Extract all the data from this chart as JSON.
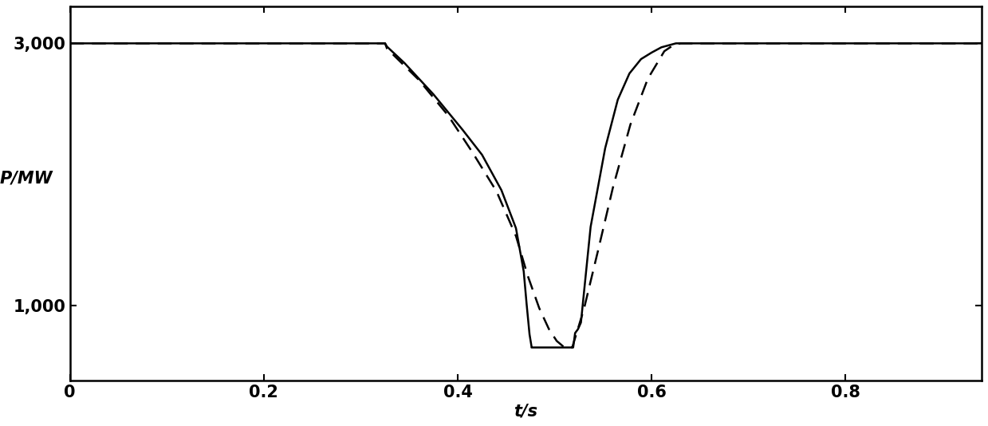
{
  "title": "",
  "xlabel": "t/s",
  "ylabel": "P/MW",
  "xlim": [
    0,
    0.94
  ],
  "ylim": [
    430,
    3280
  ],
  "yticks": [
    1000,
    3000
  ],
  "ytick_labels": [
    "1,000",
    "3,000"
  ],
  "xticks": [
    0,
    0.2,
    0.4,
    0.6,
    0.8
  ],
  "background_color": "#ffffff",
  "line_color": "#000000",
  "solid_x": [
    0.0,
    0.325,
    0.327,
    0.345,
    0.375,
    0.405,
    0.425,
    0.445,
    0.46,
    0.468,
    0.471,
    0.474,
    0.476,
    0.476,
    0.519,
    0.521,
    0.524,
    0.527,
    0.537,
    0.552,
    0.565,
    0.577,
    0.589,
    0.6,
    0.61,
    0.62,
    0.625,
    0.94
  ],
  "solid_y": [
    3000,
    3000,
    2975,
    2850,
    2610,
    2340,
    2150,
    1880,
    1590,
    1260,
    1010,
    780,
    690,
    680,
    680,
    790,
    820,
    870,
    1600,
    2200,
    2570,
    2770,
    2880,
    2930,
    2970,
    2990,
    3000,
    3000
  ],
  "dashed_x": [
    0.0,
    0.325,
    0.327,
    0.36,
    0.39,
    0.415,
    0.44,
    0.46,
    0.472,
    0.484,
    0.494,
    0.502,
    0.51,
    0.518,
    0.53,
    0.545,
    0.56,
    0.578,
    0.596,
    0.613,
    0.623,
    0.63,
    0.94
  ],
  "dashed_y": [
    3000,
    3000,
    2960,
    2720,
    2450,
    2170,
    1870,
    1530,
    1230,
    980,
    820,
    730,
    680,
    680,
    970,
    1430,
    1900,
    2380,
    2730,
    2940,
    2990,
    3000,
    3000
  ],
  "linewidth": 1.8,
  "dashes": [
    7,
    4
  ]
}
